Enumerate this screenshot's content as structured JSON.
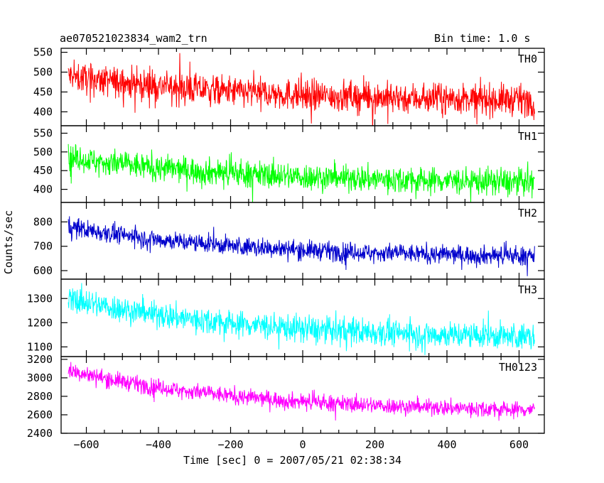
{
  "header": {
    "title_left": "ae070521023834_wam2_trn",
    "title_right": "Bin time: 1.0 s"
  },
  "axes": {
    "ylabel": "Counts/sec",
    "xlabel": "Time [sec] 0 = 2007/05/21 02:38:34"
  },
  "chart_data": [
    {
      "type": "line",
      "series": [
        {
          "name": "TH0",
          "color": "#ff0000",
          "start": 490,
          "end": 425,
          "noise": 28,
          "spike": 55
        }
      ],
      "xlim": [
        -670,
        670
      ],
      "ylim": [
        365,
        560
      ],
      "yticks": [
        400,
        450,
        500,
        550
      ],
      "yticklabels": [
        "400",
        "450",
        "500",
        "550"
      ],
      "xticks": [
        -600,
        -400,
        -200,
        0,
        200,
        400,
        600
      ]
    },
    {
      "type": "line",
      "series": [
        {
          "name": "TH1",
          "color": "#00ff00",
          "start": 485,
          "end": 415,
          "noise": 26,
          "spike": 50
        }
      ],
      "xlim": [
        -670,
        670
      ],
      "ylim": [
        365,
        570
      ],
      "yticks": [
        400,
        450,
        500,
        550
      ],
      "yticklabels": [
        "400",
        "450",
        "500",
        "550"
      ],
      "xticks": [
        -600,
        -400,
        -200,
        0,
        200,
        400,
        600
      ]
    },
    {
      "type": "line",
      "series": [
        {
          "name": "TH2",
          "color": "#0000cc",
          "start": 780,
          "end": 650,
          "noise": 28,
          "spike": 55
        }
      ],
      "xlim": [
        -670,
        670
      ],
      "ylim": [
        565,
        880
      ],
      "yticks": [
        600,
        700,
        800
      ],
      "yticklabels": [
        "600",
        "700",
        "800"
      ],
      "xticks": [
        -600,
        -400,
        -200,
        0,
        200,
        400,
        600
      ]
    },
    {
      "type": "line",
      "series": [
        {
          "name": "TH3",
          "color": "#00ffff",
          "start": 1300,
          "end": 1130,
          "noise": 40,
          "spike": 80
        }
      ],
      "xlim": [
        -670,
        670
      ],
      "ylim": [
        1060,
        1380
      ],
      "yticks": [
        1100,
        1200,
        1300
      ],
      "yticklabels": [
        "1100",
        "1200",
        "1300"
      ],
      "xticks": [
        -600,
        -400,
        -200,
        0,
        200,
        400,
        600
      ]
    },
    {
      "type": "line",
      "series": [
        {
          "name": "TH0123",
          "color": "#ff00ff",
          "start": 3080,
          "end": 2620,
          "noise": 65,
          "spike": 120
        }
      ],
      "xlim": [
        -670,
        670
      ],
      "ylim": [
        2400,
        3230
      ],
      "yticks": [
        2400,
        2600,
        2800,
        3000,
        3200
      ],
      "yticklabels": [
        "2400",
        "2600",
        "2800",
        "3000",
        "3200"
      ],
      "xticks": [
        -600,
        -400,
        -200,
        0,
        200,
        400,
        600
      ],
      "xticklabels": [
        "−600",
        "−400",
        "−200",
        "0",
        "200",
        "400",
        "600"
      ]
    }
  ]
}
